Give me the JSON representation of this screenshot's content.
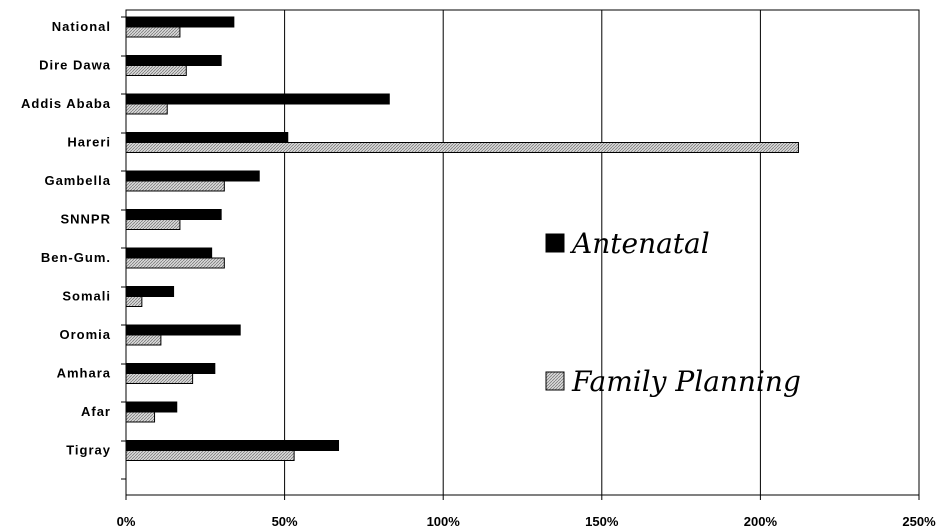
{
  "chart_data": {
    "type": "bar",
    "orientation": "horizontal",
    "categories": [
      "National",
      "Dire Dawa",
      "Addis Ababa",
      "Hareri",
      "Gambella",
      "SNNPR",
      "Ben-Gum.",
      "Somali",
      "Oromia",
      "Amhara",
      "Afar",
      "Tigray"
    ],
    "series": [
      {
        "name": "Antenatal",
        "color": "#000000",
        "values": [
          34,
          30,
          83,
          51,
          42,
          30,
          27,
          15,
          36,
          28,
          16,
          67
        ]
      },
      {
        "name": "Family Planning",
        "color": "#c0c0c0",
        "pattern": "hatched",
        "values": [
          17,
          19,
          13,
          212,
          31,
          17,
          31,
          5,
          11,
          21,
          9,
          53
        ]
      }
    ],
    "xlim": [
      0,
      250
    ],
    "xticks": [
      "0%",
      "50%",
      "100%",
      "150%",
      "200%",
      "250%"
    ],
    "xtick_values": [
      0,
      50,
      100,
      150,
      200,
      250
    ],
    "grid": "vertical",
    "legend_position": "right"
  }
}
